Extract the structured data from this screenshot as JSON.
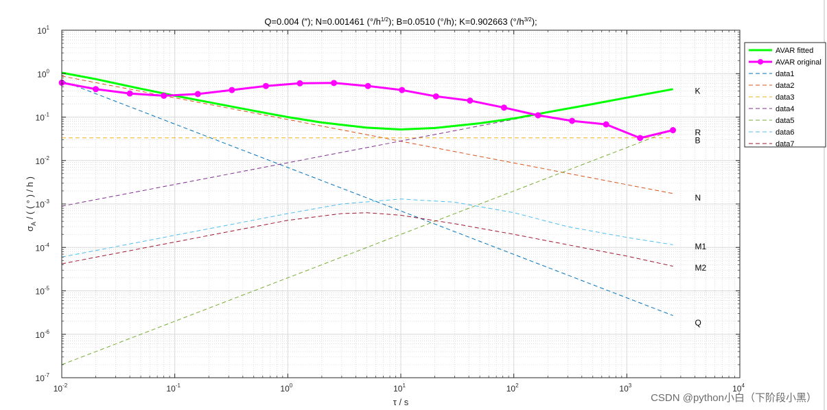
{
  "chart_data": {
    "type": "line",
    "title": "Q=0.004 (″);  N=0.001461 (°/h¹ᐟ²);  B=0.0510 (°/h);  K=0.902663 (°/h³ᐟ²);",
    "title_parts": {
      "p1": "Q=0.004 (″);  N=0.001461 (°/h",
      "p1_sup": "1/2",
      "p2": ");  B=0.0510 (°/h);  K=0.902663 (°/h",
      "p2_sup": "3/2",
      "p3": ");"
    },
    "xlabel": "τ / s",
    "ylabel": "σA / ( ( ° ) / h )",
    "ylabel_parts": {
      "sigma": "σ",
      "sub": "A",
      "rest": " / ( ( ° ) / h )"
    },
    "xscale": "log",
    "yscale": "log",
    "xlim": [
      0.01,
      10000
    ],
    "ylim": [
      1e-07,
      10
    ],
    "grid": true,
    "minor_grid": true,
    "legend_placement": "outside-top-right",
    "x_ticks": [
      {
        "base": "10",
        "exp": "-2"
      },
      {
        "base": "10",
        "exp": "-1"
      },
      {
        "base": "10",
        "exp": "0"
      },
      {
        "base": "10",
        "exp": "1"
      },
      {
        "base": "10",
        "exp": "2"
      },
      {
        "base": "10",
        "exp": "3"
      },
      {
        "base": "10",
        "exp": "4"
      }
    ],
    "y_ticks": [
      {
        "base": "10",
        "exp": "-7"
      },
      {
        "base": "10",
        "exp": "-6"
      },
      {
        "base": "10",
        "exp": "-5"
      },
      {
        "base": "10",
        "exp": "-4"
      },
      {
        "base": "10",
        "exp": "-3"
      },
      {
        "base": "10",
        "exp": "-2"
      },
      {
        "base": "10",
        "exp": "-1"
      },
      {
        "base": "10",
        "exp": "0"
      },
      {
        "base": "10",
        "exp": "1"
      }
    ],
    "series": [
      {
        "name": "AVAR fitted",
        "color": "#00ff00",
        "style": "solid",
        "width": 3,
        "marker": "none",
        "x": [
          0.01,
          0.02,
          0.05,
          0.1,
          0.2,
          0.5,
          1,
          2,
          5,
          10,
          20,
          50,
          100,
          200,
          500,
          1000,
          2560
        ],
        "y": [
          1.05,
          0.75,
          0.45,
          0.31,
          0.22,
          0.14,
          0.1,
          0.075,
          0.057,
          0.052,
          0.056,
          0.072,
          0.093,
          0.13,
          0.2,
          0.28,
          0.44
        ]
      },
      {
        "name": "AVAR original",
        "color": "#ff00ff",
        "style": "solid",
        "width": 3,
        "marker": "circle",
        "x": [
          0.01,
          0.02,
          0.04,
          0.08,
          0.16,
          0.32,
          0.64,
          1.28,
          2.56,
          5.12,
          10.24,
          20.48,
          40.96,
          81.92,
          163.84,
          327.68,
          655.36,
          1310.72,
          2560
        ],
        "y": [
          0.62,
          0.44,
          0.35,
          0.31,
          0.34,
          0.42,
          0.52,
          0.6,
          0.61,
          0.52,
          0.42,
          0.3,
          0.24,
          0.165,
          0.11,
          0.082,
          0.068,
          0.033,
          0.05
        ]
      },
      {
        "name": "data1",
        "color": "#0072bd",
        "style": "dashed",
        "width": 1,
        "marker": "none",
        "x": [
          0.01,
          2560
        ],
        "y": [
          0.69,
          2.7e-06
        ]
      },
      {
        "name": "data2",
        "color": "#d95319",
        "style": "dashed",
        "width": 1,
        "marker": "none",
        "x": [
          0.01,
          2560
        ],
        "y": [
          0.88,
          0.00174
        ]
      },
      {
        "name": "data3",
        "color": "#edb120",
        "style": "dashed",
        "width": 1,
        "marker": "none",
        "x": [
          0.01,
          2560
        ],
        "y": [
          0.0333,
          0.0333
        ]
      },
      {
        "name": "data4",
        "color": "#7e2f8e",
        "style": "dashed",
        "width": 1,
        "marker": "none",
        "x": [
          0.01,
          2560
        ],
        "y": [
          0.00089,
          0.45
        ]
      },
      {
        "name": "data5",
        "color": "#77ac30",
        "style": "dashed",
        "width": 1,
        "marker": "none",
        "x": [
          0.01,
          2560
        ],
        "y": [
          2e-07,
          0.051
        ]
      },
      {
        "name": "data6",
        "color": "#4dbeee",
        "style": "dashed",
        "width": 1,
        "marker": "none",
        "x": [
          0.01,
          0.1,
          1,
          3,
          10,
          30,
          100,
          300,
          1000,
          2560
        ],
        "y": [
          6e-05,
          0.00019,
          0.0006,
          0.001,
          0.0013,
          0.0011,
          0.00063,
          0.0003,
          0.00017,
          0.000115
        ]
      },
      {
        "name": "data7",
        "color": "#a2142f",
        "style": "dashed",
        "width": 1,
        "marker": "none",
        "x": [
          0.01,
          0.1,
          1,
          3,
          5,
          10,
          30,
          100,
          300,
          1000,
          2560
        ],
        "y": [
          4.2e-05,
          0.000133,
          0.00042,
          0.0006,
          0.00063,
          0.00055,
          0.00035,
          0.0002,
          0.000115,
          6.3e-05,
          3.7e-05
        ]
      }
    ],
    "annotations": [
      {
        "text": "K",
        "x": 4000,
        "y": 0.4
      },
      {
        "text": "R",
        "x": 4000,
        "y": 0.044
      },
      {
        "text": "B",
        "x": 4000,
        "y": 0.029
      },
      {
        "text": "N",
        "x": 4000,
        "y": 0.0014
      },
      {
        "text": "M1",
        "x": 4000,
        "y": 0.000105
      },
      {
        "text": "M2",
        "x": 4000,
        "y": 3.4e-05
      },
      {
        "text": "Q",
        "x": 4000,
        "y": 1.85e-06
      }
    ]
  },
  "watermark": "CSDN @python小白（下阶段小黑）"
}
